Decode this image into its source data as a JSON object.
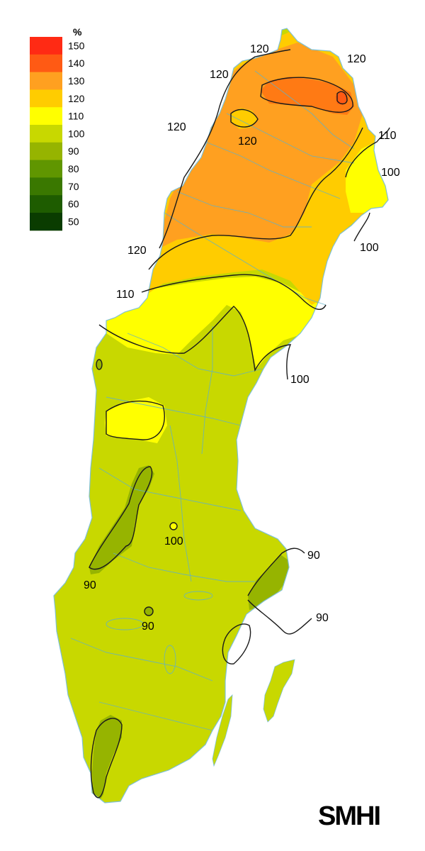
{
  "legend": {
    "unit": "%",
    "classes": [
      {
        "label": "150",
        "color": "#ff2a14"
      },
      {
        "label": "140",
        "color": "#ff5a14"
      },
      {
        "label": "130",
        "color": "#ffa020"
      },
      {
        "label": "120",
        "color": "#ffcc00"
      },
      {
        "label": "110",
        "color": "#ffff00"
      },
      {
        "label": "100",
        "color": "#c8d800"
      },
      {
        "label": "90",
        "color": "#96b400"
      },
      {
        "label": "80",
        "color": "#609600"
      },
      {
        "label": "70",
        "color": "#3a7800"
      },
      {
        "label": "60",
        "color": "#1e5c00"
      },
      {
        "label": "50",
        "color": "#0a3c00"
      }
    ]
  },
  "contour_labels": [
    {
      "name": "contour-label-120-north",
      "text": "120"
    },
    {
      "name": "contour-label-120-northeast",
      "text": "120"
    },
    {
      "name": "contour-label-120-west",
      "text": "120"
    },
    {
      "name": "contour-label-120-center",
      "text": "120"
    },
    {
      "name": "contour-label-120-northwest",
      "text": "120"
    },
    {
      "name": "contour-label-110-east",
      "text": "110"
    },
    {
      "name": "contour-label-100-east",
      "text": "100"
    },
    {
      "name": "contour-label-100-coast",
      "text": "100"
    },
    {
      "name": "contour-label-120-mountain",
      "text": "120"
    },
    {
      "name": "contour-label-110-west",
      "text": "110"
    },
    {
      "name": "contour-label-100-bothnia",
      "text": "100"
    },
    {
      "name": "contour-label-100-inland",
      "text": "100"
    },
    {
      "name": "contour-label-90-west",
      "text": "90"
    },
    {
      "name": "contour-label-90-central",
      "text": "90"
    },
    {
      "name": "contour-label-90-stockholm",
      "text": "90"
    },
    {
      "name": "contour-label-90-baltic",
      "text": "90"
    }
  ],
  "logo": {
    "text": "SMHI"
  }
}
